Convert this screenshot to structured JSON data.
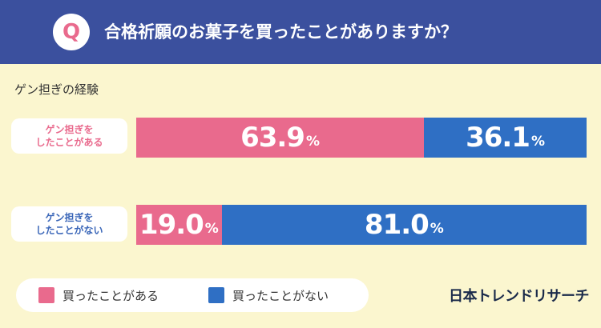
{
  "header": {
    "badge": "Q",
    "question": "合格祈願のお菓子を買ったことがありますか？"
  },
  "subtitle": "ゲン担ぎの経験",
  "colors": {
    "header_bg": "#3b509e",
    "background": "#fbf6cf",
    "bought": "#e96a8d",
    "not_bought": "#2f6fc4"
  },
  "rows": [
    {
      "label_line1": "ゲン担ぎを",
      "label_line2": "したことがある",
      "label_color": "#e96a8d",
      "bought": {
        "num": "63.9",
        "pct": "%"
      },
      "not_bought": {
        "num": "36.1",
        "pct": "%"
      }
    },
    {
      "label_line1": "ゲン担ぎを",
      "label_line2": "したことがない",
      "label_color": "#3a66b8",
      "bought": {
        "num": "19.0",
        "pct": "%"
      },
      "not_bought": {
        "num": "81.0",
        "pct": "%"
      }
    }
  ],
  "legend": {
    "bought": "買ったことがある",
    "not_bought": "買ったことがない"
  },
  "brand": "日本トレンドリサーチ",
  "chart_data": {
    "type": "bar",
    "orientation": "horizontal",
    "stacked": true,
    "title": "合格祈願のお菓子を買ったことがありますか？",
    "subtitle": "ゲン担ぎの経験",
    "categories": [
      "ゲン担ぎをしたことがある",
      "ゲン担ぎをしたことがない"
    ],
    "series": [
      {
        "name": "買ったことがある",
        "values": [
          63.9,
          19.0
        ],
        "color": "#e96a8d"
      },
      {
        "name": "買ったことがない",
        "values": [
          36.1,
          81.0
        ],
        "color": "#2f6fc4"
      }
    ],
    "unit": "%",
    "xlim": [
      0,
      100
    ],
    "legend_position": "bottom-left",
    "grid": false
  }
}
